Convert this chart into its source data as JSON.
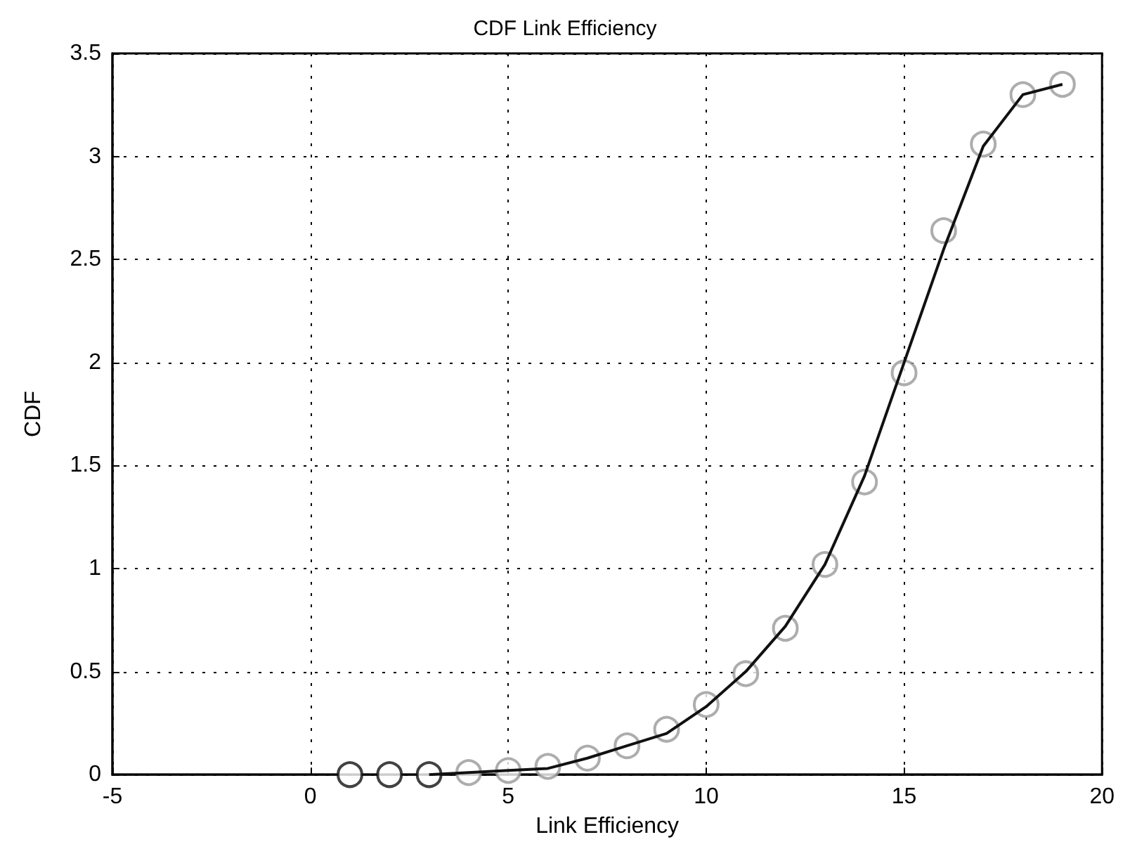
{
  "chart_data": {
    "type": "line",
    "title": "CDF Link Efficiency",
    "xlabel": "Link Efficiency",
    "ylabel": "CDF",
    "xlim": [
      -5,
      20
    ],
    "xticks": [
      -5,
      0,
      5,
      10,
      15,
      20
    ],
    "ylim": [
      0,
      3.5
    ],
    "yticks": [
      0,
      0.5,
      1,
      1.5,
      2,
      2.5,
      3,
      3.5
    ],
    "grid": true,
    "series": [
      {
        "type": "scatter",
        "marker": "circle",
        "color": "#999999",
        "colors": [
          "#111111",
          "#111111",
          "#111111",
          "#999999",
          "#999999",
          "#999999",
          "#999999",
          "#999999",
          "#999999",
          "#999999",
          "#999999",
          "#999999",
          "#999999",
          "#999999",
          "#999999",
          "#999999",
          "#999999",
          "#999999",
          "#999999"
        ],
        "x": [
          1,
          2,
          3,
          4,
          5,
          6,
          7,
          8,
          9,
          10,
          11,
          12,
          13,
          14,
          15,
          16,
          17,
          18,
          19
        ],
        "values": [
          0,
          0,
          0,
          0.01,
          0.02,
          0.04,
          0.08,
          0.14,
          0.22,
          0.34,
          0.49,
          0.71,
          1.02,
          1.42,
          1.95,
          2.64,
          3.06,
          3.3,
          3.35
        ]
      },
      {
        "marker": "none",
        "line_style": "solid",
        "color": "#111111",
        "x": [
          3,
          4,
          5,
          6,
          7,
          8,
          9,
          10,
          11,
          12,
          13,
          14,
          15,
          16,
          17,
          18,
          19
        ],
        "values": [
          0,
          0.01,
          0.02,
          0.03,
          0.08,
          0.14,
          0.2,
          0.33,
          0.5,
          0.72,
          1.02,
          1.45,
          2.0,
          2.55,
          3.05,
          3.3,
          3.35
        ]
      }
    ]
  }
}
